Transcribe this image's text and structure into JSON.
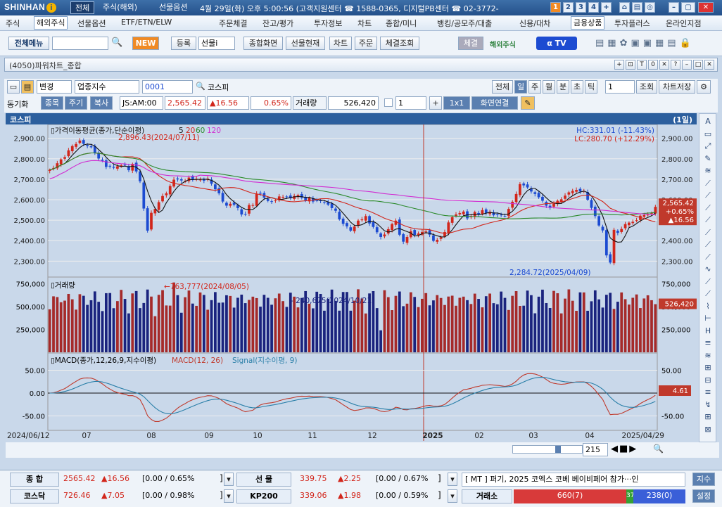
{
  "topbar": {
    "logo": "SHINHAN",
    "tabs": [
      "전체",
      "주식(해외)",
      "선물옵션"
    ],
    "info": "4월 29일(화) 오후 5:00:56 (고객지원센터 ☎ 1588-0365, 디지털PB센터 ☎ 02-3772-",
    "pages": [
      "1",
      "2",
      "3",
      "4",
      "+"
    ]
  },
  "menu": [
    "주식",
    "해외주식",
    "선물옵션",
    "ETF/ETN/ELW",
    "주문체결",
    "잔고/평가",
    "투자정보",
    "차트",
    "종합/미니",
    "뱅킹/공모주/대출",
    "신용/대차",
    "금융상품",
    "투자플러스",
    "온라인지점"
  ],
  "toolbar": {
    "all_menu": "전체메뉴",
    "new": "NEW",
    "register": "등록",
    "futures_field": "선물i",
    "buttons": [
      "종합화면",
      "선물현재",
      "차트",
      "주문",
      "체결조회"
    ],
    "exec": "체결",
    "overseas": "해외주식",
    "tv": "TV"
  },
  "window": {
    "title": "(4050)파워차트_종합",
    "ctrl": [
      "+",
      "⊡",
      "T",
      "0",
      "✕",
      "?",
      "–",
      "□",
      "✕"
    ]
  },
  "sub": {
    "change": "변경",
    "index_type": "업종지수",
    "code": "0001",
    "name": "코스피",
    "periods": [
      "전체",
      "일",
      "주",
      "월",
      "분",
      "초",
      "틱"
    ],
    "count": "1",
    "query": "조회",
    "save": "차트저장",
    "sync": "동기화",
    "stock": "종목",
    "cycle": "주기",
    "copy": "복사",
    "time_code": "JS:AM:00",
    "price": "2,565.42",
    "change_val": "▲16.56",
    "change_pct": "0.65%",
    "volume_label": "거래량",
    "volume": "526,420",
    "num": "1",
    "layout": "1x1",
    "connect": "화면연결"
  },
  "chart_header": {
    "name": "코스피",
    "cycle": "(1일)"
  },
  "price_legend": {
    "title": "가격이동평균(종가,단순이평)",
    "p5": "5",
    "p20": "20",
    "p60": "60",
    "p120": "120",
    "hc": "HC:331.01 (-11.43%)",
    "lc": "LC:280.70 (+12.29%)",
    "max": "2,896.43(2024/07/11)",
    "min": "2,284.72(2025/04/09)",
    "cur_price": "2,565.42",
    "cur_pct": "+0.65%",
    "cur_chg": "▲16.56"
  },
  "volume_legend": {
    "title": "거래량",
    "max": "763,777(2024/08/05)",
    "marker": "240,675(2024/10/21)",
    "cur": "526,420"
  },
  "macd_legend": {
    "title": "MACD(종가,12,26,9,지수이평)",
    "macd": "MACD(12, 26)",
    "signal": "Signal(지수이평, 9)",
    "cur": "4.61"
  },
  "axes": {
    "price_ticks": [
      "2,900.00",
      "2,800.00",
      "2,700.00",
      "2,600.00",
      "2,500.00",
      "2,400.00",
      "2,300.00"
    ],
    "volume_ticks": [
      "750,000",
      "500,000",
      "250,000"
    ],
    "macd_ticks": [
      "50.00",
      "0.00",
      "-50.00"
    ],
    "x_labels": [
      "2024/06/12",
      "07",
      "08",
      "09",
      "10",
      "11",
      "12",
      "2025",
      "02",
      "03",
      "04",
      "2025/04/29"
    ],
    "scroll_val": "215"
  },
  "bottom": {
    "row1": {
      "name": "종  합",
      "price": "2565.42",
      "chg": "▲16.56",
      "pct": "[0.00 / 0.65%",
      "fut": "선  물",
      "fprice": "339.75",
      "fchg": "▲2.25",
      "fpct": "[0.00 / 0.67%",
      "news": "[ MT ] 퍼기, 2025 코엑스 코베 베이비페어 참가···인",
      "btn": "지수"
    },
    "row2": {
      "name": "코스닥",
      "price": "726.46",
      "chg": "▲7.05",
      "pct": "[0.00 / 0.98%",
      "fut": "KP200",
      "fprice": "339.06",
      "fchg": "▲1.98",
      "fpct": "[0.00 / 0.59%",
      "exch": "거래소",
      "up": "660(7)",
      "flat": "37",
      "down": "238(0)",
      "btn": "설정"
    }
  },
  "chart_data": [
    {
      "type": "candlestick",
      "title": "코스피",
      "ylim": [
        2260,
        2940
      ],
      "series": [
        {
          "name": "5"
        },
        {
          "name": "20"
        },
        {
          "name": "60"
        },
        {
          "name": "120"
        }
      ],
      "close": [
        2746,
        2755,
        2778,
        2797,
        2808,
        2841,
        2862,
        2872,
        2889,
        2873,
        2862,
        2856,
        2830,
        2801,
        2790,
        2760,
        2764,
        2756,
        2763,
        2768,
        2770,
        2744,
        2775,
        2738,
        2690,
        2557,
        2449,
        2536,
        2555,
        2588,
        2618,
        2631,
        2667,
        2698,
        2699,
        2694,
        2690,
        2708,
        2700,
        2702,
        2698,
        2693,
        2703,
        2678,
        2651,
        2631,
        2591,
        2571,
        2580,
        2575,
        2559,
        2528,
        2527,
        2574,
        2574,
        2629,
        2630,
        2610,
        2594,
        2590,
        2597,
        2616,
        2614,
        2615,
        2607,
        2618,
        2623,
        2610,
        2597,
        2609,
        2591,
        2596,
        2595,
        2588,
        2576,
        2559,
        2546,
        2504,
        2482,
        2470,
        2449,
        2469,
        2498,
        2504,
        2520,
        2484,
        2467,
        2441,
        2418,
        2430,
        2456,
        2481,
        2498,
        2429,
        2395,
        2418,
        2446,
        2428,
        2435,
        2442,
        2445,
        2429,
        2399,
        2404,
        2417,
        2442,
        2489,
        2515,
        2528,
        2535,
        2542,
        2509,
        2519,
        2540,
        2527,
        2549,
        2535,
        2541,
        2524,
        2526,
        2526,
        2520,
        2555,
        2590,
        2628,
        2676,
        2670,
        2660,
        2640,
        2628,
        2612,
        2595,
        2571,
        2560,
        2581,
        2595,
        2602,
        2620,
        2636,
        2643,
        2648,
        2640,
        2643,
        2600,
        2560,
        2520,
        2474,
        2450,
        2328,
        2293,
        2453,
        2438,
        2457,
        2481,
        2488,
        2492,
        2500,
        2522,
        2525,
        2527,
        2535,
        2565
      ]
    },
    {
      "type": "bar",
      "title": "거래량",
      "max": 763777,
      "marker": 240675,
      "last": 526420
    },
    {
      "type": "line",
      "title": "MACD",
      "ylim": [
        -80,
        80
      ],
      "series": [
        {
          "name": "MACD(12, 26)"
        },
        {
          "name": "Signal(지수이평, 9)"
        }
      ],
      "last": 4.61
    }
  ]
}
